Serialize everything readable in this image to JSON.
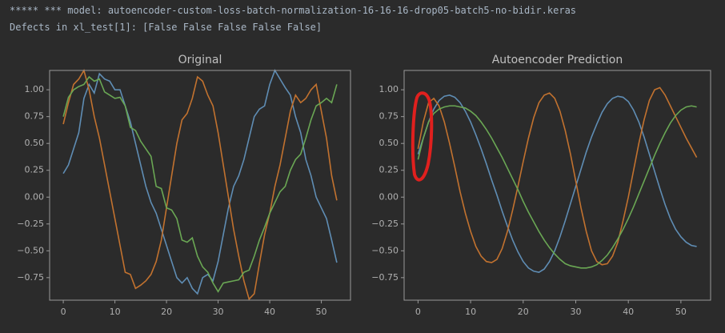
{
  "header": {
    "lines": [
      "***** *** model: autoencoder-custom-loss-batch-normalization-16-16-16-drop05-batch5-no-bidir.keras",
      "Defects in xl_test[1]: [False False False False False]"
    ]
  },
  "chart_data": [
    {
      "type": "line",
      "title": "Original",
      "x": [
        0,
        1,
        2,
        3,
        4,
        5,
        6,
        7,
        8,
        9,
        10,
        11,
        12,
        13,
        14,
        15,
        16,
        17,
        18,
        19,
        20,
        21,
        22,
        23,
        24,
        25,
        26,
        27,
        28,
        29,
        30,
        31,
        32,
        33,
        34,
        35,
        36,
        37,
        38,
        39,
        40,
        41,
        42,
        43,
        44,
        45,
        46,
        47,
        48,
        49,
        50,
        51,
        52,
        53
      ],
      "series": [
        {
          "color": "#5f8db4",
          "values": [
            0.22,
            0.3,
            0.45,
            0.6,
            0.92,
            1.05,
            0.97,
            1.15,
            1.1,
            1.08,
            1.0,
            1.0,
            0.85,
            0.7,
            0.5,
            0.3,
            0.1,
            -0.05,
            -0.15,
            -0.3,
            -0.45,
            -0.6,
            -0.75,
            -0.8,
            -0.75,
            -0.85,
            -0.9,
            -0.75,
            -0.72,
            -0.78,
            -0.6,
            -0.35,
            -0.1,
            0.1,
            0.2,
            0.35,
            0.55,
            0.75,
            0.82,
            0.85,
            1.05,
            1.18,
            1.1,
            1.02,
            0.95,
            0.75,
            0.6,
            0.35,
            0.2,
            0.0,
            -0.1,
            -0.2,
            -0.4,
            -0.61
          ]
        },
        {
          "color": "#c2722f",
          "values": [
            0.68,
            0.88,
            1.05,
            1.1,
            1.18,
            1.0,
            0.75,
            0.55,
            0.3,
            0.05,
            -0.2,
            -0.45,
            -0.7,
            -0.72,
            -0.85,
            -0.82,
            -0.78,
            -0.72,
            -0.6,
            -0.4,
            -0.1,
            0.2,
            0.5,
            0.72,
            0.78,
            0.92,
            1.12,
            1.08,
            0.95,
            0.85,
            0.6,
            0.3,
            0.0,
            -0.3,
            -0.55,
            -0.78,
            -0.95,
            -0.9,
            -0.62,
            -0.35,
            -0.15,
            0.1,
            0.3,
            0.55,
            0.8,
            0.95,
            0.88,
            0.92,
            1.0,
            1.05,
            0.8,
            0.55,
            0.2,
            -0.03
          ]
        },
        {
          "color": "#6aa754",
          "values": [
            0.75,
            0.93,
            1.0,
            1.03,
            1.05,
            1.12,
            1.08,
            1.1,
            0.98,
            0.95,
            0.92,
            0.93,
            0.85,
            0.65,
            0.62,
            0.52,
            0.45,
            0.38,
            0.1,
            0.08,
            -0.1,
            -0.12,
            -0.2,
            -0.4,
            -0.42,
            -0.38,
            -0.55,
            -0.65,
            -0.7,
            -0.8,
            -0.88,
            -0.8,
            -0.79,
            -0.78,
            -0.77,
            -0.7,
            -0.68,
            -0.55,
            -0.4,
            -0.28,
            -0.15,
            -0.05,
            0.05,
            0.1,
            0.25,
            0.35,
            0.4,
            0.55,
            0.72,
            0.85,
            0.88,
            0.92,
            0.88,
            1.05
          ]
        }
      ],
      "xlim": [
        -2.65,
        55.65
      ],
      "xticks": [
        0,
        10,
        20,
        30,
        40,
        50
      ],
      "ylim": [
        -0.96,
        1.18
      ],
      "yticks": [
        {
          "value": -0.75,
          "label": "−0.75"
        },
        {
          "value": -0.5,
          "label": "−0.50"
        },
        {
          "value": -0.25,
          "label": "−0.25"
        },
        {
          "value": 0,
          "label": "0.00"
        },
        {
          "value": 0.25,
          "label": "0.25"
        },
        {
          "value": 0.5,
          "label": "0.50"
        },
        {
          "value": 0.75,
          "label": "0.75"
        },
        {
          "value": 1,
          "label": "1.00"
        }
      ]
    },
    {
      "type": "line",
      "title": "Autoencoder Prediction",
      "x": [
        0,
        1,
        2,
        3,
        4,
        5,
        6,
        7,
        8,
        9,
        10,
        11,
        12,
        13,
        14,
        15,
        16,
        17,
        18,
        19,
        20,
        21,
        22,
        23,
        24,
        25,
        26,
        27,
        28,
        29,
        30,
        31,
        32,
        33,
        34,
        35,
        36,
        37,
        38,
        39,
        40,
        41,
        42,
        43,
        44,
        45,
        46,
        47,
        48,
        49,
        50,
        51,
        52,
        53
      ],
      "series": [
        {
          "color": "#5f8db4",
          "values": [
            0.4,
            0.55,
            0.7,
            0.82,
            0.9,
            0.94,
            0.95,
            0.93,
            0.88,
            0.8,
            0.7,
            0.58,
            0.45,
            0.31,
            0.16,
            0.02,
            -0.13,
            -0.27,
            -0.4,
            -0.51,
            -0.6,
            -0.66,
            -0.69,
            -0.7,
            -0.67,
            -0.6,
            -0.5,
            -0.37,
            -0.22,
            -0.06,
            0.1,
            0.26,
            0.42,
            0.56,
            0.68,
            0.79,
            0.87,
            0.92,
            0.94,
            0.93,
            0.89,
            0.81,
            0.7,
            0.56,
            0.4,
            0.24,
            0.08,
            -0.07,
            -0.2,
            -0.3,
            -0.37,
            -0.42,
            -0.45,
            -0.46
          ]
        },
        {
          "color": "#c2722f",
          "values": [
            0.45,
            0.7,
            0.88,
            0.92,
            0.85,
            0.7,
            0.5,
            0.28,
            0.05,
            -0.15,
            -0.32,
            -0.46,
            -0.55,
            -0.6,
            -0.61,
            -0.58,
            -0.48,
            -0.32,
            -0.12,
            0.1,
            0.33,
            0.55,
            0.74,
            0.88,
            0.95,
            0.97,
            0.92,
            0.8,
            0.62,
            0.4,
            0.15,
            -0.1,
            -0.32,
            -0.5,
            -0.6,
            -0.63,
            -0.62,
            -0.55,
            -0.42,
            -0.22,
            0.0,
            0.25,
            0.5,
            0.72,
            0.9,
            1.0,
            1.02,
            0.95,
            0.85,
            0.75,
            0.65,
            0.55,
            0.46,
            0.37
          ]
        },
        {
          "color": "#6aa754",
          "values": [
            0.35,
            0.55,
            0.7,
            0.78,
            0.82,
            0.84,
            0.85,
            0.85,
            0.84,
            0.83,
            0.8,
            0.76,
            0.7,
            0.63,
            0.55,
            0.46,
            0.37,
            0.27,
            0.17,
            0.07,
            -0.04,
            -0.14,
            -0.23,
            -0.32,
            -0.4,
            -0.47,
            -0.53,
            -0.58,
            -0.62,
            -0.64,
            -0.65,
            -0.66,
            -0.66,
            -0.65,
            -0.63,
            -0.59,
            -0.54,
            -0.47,
            -0.39,
            -0.3,
            -0.2,
            -0.09,
            0.03,
            0.15,
            0.27,
            0.39,
            0.5,
            0.6,
            0.69,
            0.76,
            0.81,
            0.84,
            0.85,
            0.84
          ]
        }
      ],
      "xlim": [
        -2.65,
        55.65
      ],
      "xticks": [
        0,
        10,
        20,
        30,
        40,
        50
      ],
      "ylim": [
        -0.96,
        1.18
      ],
      "yticks": [
        {
          "value": -0.75,
          "label": "−0.75"
        },
        {
          "value": -0.5,
          "label": "−0.50"
        },
        {
          "value": -0.25,
          "label": "−0.25"
        },
        {
          "value": 0,
          "label": "0.00"
        },
        {
          "value": 0.25,
          "label": "0.25"
        },
        {
          "value": 0.5,
          "label": "0.50"
        },
        {
          "value": 0.75,
          "label": "0.75"
        },
        {
          "value": 1,
          "label": "1.00"
        }
      ]
    }
  ]
}
